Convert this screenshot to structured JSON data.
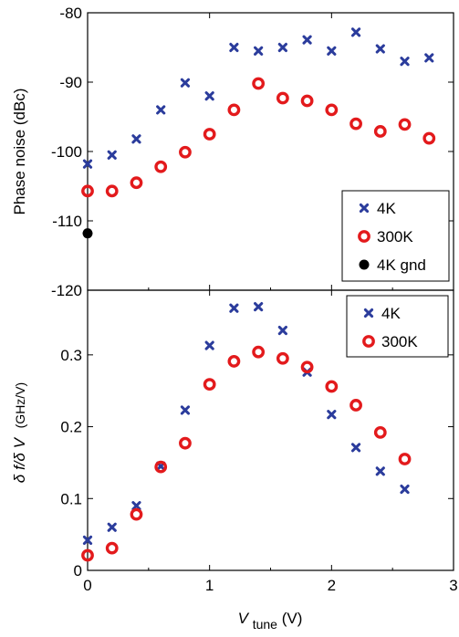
{
  "chart_data": [
    {
      "type": "scatter",
      "ylabel": "Phase noise (dBc)",
      "xlim": [
        0,
        3
      ],
      "ylim": [
        -120,
        -80
      ],
      "xticks": [],
      "yticks": [
        "-80",
        "-90",
        "-100",
        "-110",
        "-120"
      ],
      "legend_position": "bottom-right",
      "series": [
        {
          "name": "4K",
          "marker": "x",
          "color": "#2b3c9c",
          "x": [
            0,
            0.2,
            0.4,
            0.6,
            0.8,
            1.0,
            1.2,
            1.4,
            1.6,
            1.8,
            2.0,
            2.2,
            2.4,
            2.6,
            2.8
          ],
          "y": [
            -101.8,
            -100.5,
            -98.2,
            -94.0,
            -90.1,
            -92.0,
            -85.0,
            -85.5,
            -85.0,
            -83.9,
            -85.5,
            -82.8,
            -85.2,
            -87.0,
            -86.5
          ]
        },
        {
          "name": "300K",
          "marker": "circle",
          "color": "#e31a1c",
          "x": [
            0,
            0.2,
            0.4,
            0.6,
            0.8,
            1.0,
            1.2,
            1.4,
            1.6,
            1.8,
            2.0,
            2.2,
            2.4,
            2.6,
            2.8
          ],
          "y": [
            -105.7,
            -105.7,
            -104.5,
            -102.2,
            -100.1,
            -97.5,
            -94.0,
            -90.2,
            -92.3,
            -92.7,
            -94.0,
            -96.0,
            -97.1,
            -96.1,
            -98.1
          ]
        },
        {
          "name": "4K gnd",
          "marker": "dot",
          "color": "#000000",
          "x": [
            0
          ],
          "y": [
            -111.8
          ]
        }
      ]
    },
    {
      "type": "scatter",
      "xlabel_main": "V",
      "xlabel_sub": "tune",
      "xlabel_unit": " (V)",
      "ylabel_main": "δ f/δ V",
      "ylabel_unit": "(GHz/V)",
      "xlim": [
        0,
        3
      ],
      "ylim": [
        0,
        0.39
      ],
      "xticks": [
        "0",
        "1",
        "2",
        "3"
      ],
      "yticks": [
        "0",
        "0.1",
        "0.2",
        "0.3"
      ],
      "legend_position": "top-right",
      "series": [
        {
          "name": "4K",
          "marker": "x",
          "color": "#2b3c9c",
          "x": [
            0,
            0.2,
            0.4,
            0.6,
            0.8,
            1.0,
            1.2,
            1.4,
            1.6,
            1.8,
            2.0,
            2.2,
            2.4,
            2.6
          ],
          "y": [
            0.042,
            0.06,
            0.09,
            0.145,
            0.223,
            0.313,
            0.365,
            0.367,
            0.334,
            0.276,
            0.217,
            0.171,
            0.138,
            0.113
          ]
        },
        {
          "name": "300K",
          "marker": "circle",
          "color": "#e31a1c",
          "x": [
            0,
            0.2,
            0.4,
            0.6,
            0.8,
            1.0,
            1.2,
            1.4,
            1.6,
            1.8,
            2.0,
            2.2,
            2.4,
            2.6
          ],
          "y": [
            0.021,
            0.031,
            0.078,
            0.144,
            0.177,
            0.259,
            0.291,
            0.304,
            0.295,
            0.283,
            0.256,
            0.23,
            0.192,
            0.155
          ]
        }
      ]
    }
  ]
}
